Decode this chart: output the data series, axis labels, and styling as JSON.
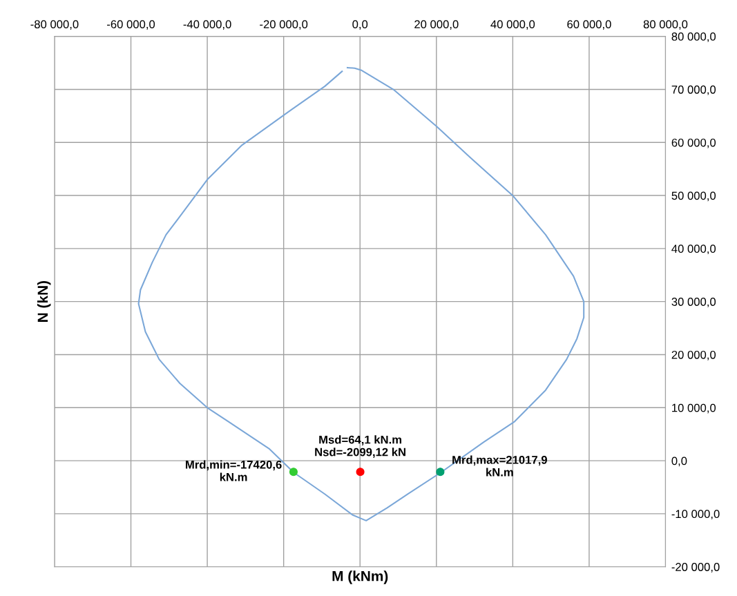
{
  "chart_data": {
    "type": "line",
    "xlabel": "M (kNm)",
    "ylabel": "N (kN)",
    "xlim": [
      -80000,
      80000
    ],
    "ylim": [
      -20000,
      80000
    ],
    "xticks": [
      {
        "value": -80000,
        "label": "-80 000,0"
      },
      {
        "value": -60000,
        "label": "-60 000,0"
      },
      {
        "value": -40000,
        "label": "-40 000,0"
      },
      {
        "value": -20000,
        "label": "-20 000,0"
      },
      {
        "value": 0,
        "label": "0,0"
      },
      {
        "value": 20000,
        "label": "20 000,0"
      },
      {
        "value": 40000,
        "label": "40 000,0"
      },
      {
        "value": 60000,
        "label": "60 000,0"
      },
      {
        "value": 80000,
        "label": "80 000,0"
      }
    ],
    "yticks": [
      {
        "value": -20000,
        "label": "-20 000,0"
      },
      {
        "value": -10000,
        "label": "-10 000,0"
      },
      {
        "value": 0,
        "label": "0,0"
      },
      {
        "value": 10000,
        "label": "10 000,0"
      },
      {
        "value": 20000,
        "label": "20 000,0"
      },
      {
        "value": 30000,
        "label": "30 000,0"
      },
      {
        "value": 40000,
        "label": "40 000,0"
      },
      {
        "value": 50000,
        "label": "50 000,0"
      },
      {
        "value": 60000,
        "label": "60 000,0"
      },
      {
        "value": 70000,
        "label": "70 000,0"
      },
      {
        "value": 80000,
        "label": "80 000,0"
      }
    ],
    "grid": true,
    "legend": false,
    "line_style": "solid",
    "series": [
      {
        "color": "#7ba7d8",
        "marker": "none",
        "x": [
          -3300,
          -1400,
          400,
          8900,
          20100,
          28800,
          40100,
          48600,
          55900,
          58600,
          58600,
          56800,
          54100,
          48600,
          40500,
          32400,
          21200,
          12500,
          7100,
          1600,
          -2000,
          -9200,
          -17400,
          -23700,
          -34500,
          -40000,
          -47200,
          -52600,
          -56200,
          -58000,
          -57500,
          -54400,
          -50800,
          -46700,
          -40000,
          -30900,
          -18300,
          -9200,
          -4700
        ],
        "values": [
          74100,
          74000,
          73600,
          69900,
          63000,
          57200,
          49900,
          42600,
          34800,
          30000,
          27000,
          23000,
          19100,
          13300,
          7400,
          3500,
          -2200,
          -6300,
          -8900,
          -11300,
          -10200,
          -6300,
          -2200,
          2200,
          7400,
          10000,
          14600,
          19100,
          24300,
          29600,
          32200,
          37400,
          42600,
          46500,
          53000,
          59500,
          66000,
          70600,
          73400
        ]
      },
      {
        "type": "scatter",
        "marker": "circle",
        "color": "#ff0000",
        "x": [
          64.1
        ],
        "values": [
          -2099.12
        ]
      },
      {
        "type": "scatter",
        "marker": "circle",
        "color": "#33cc33",
        "x": [
          -17420.6
        ],
        "values": [
          -2099.12
        ]
      },
      {
        "type": "scatter",
        "marker": "circle",
        "color": "#00a070",
        "x": [
          21017.9
        ],
        "values": [
          -2099.12
        ]
      }
    ],
    "annotations": [
      {
        "text": "Msd=64,1 kN.m\nNsd=-2099,12 kN",
        "x": 64.1,
        "y": -2099.12
      },
      {
        "text": "Mrd,min=-17420,6\nkN.m",
        "x": -17420.6,
        "y": -2099.12
      },
      {
        "text": "Mrd,max=21017,9\nkN.m",
        "x": 21017.9,
        "y": -2099.12
      }
    ]
  }
}
